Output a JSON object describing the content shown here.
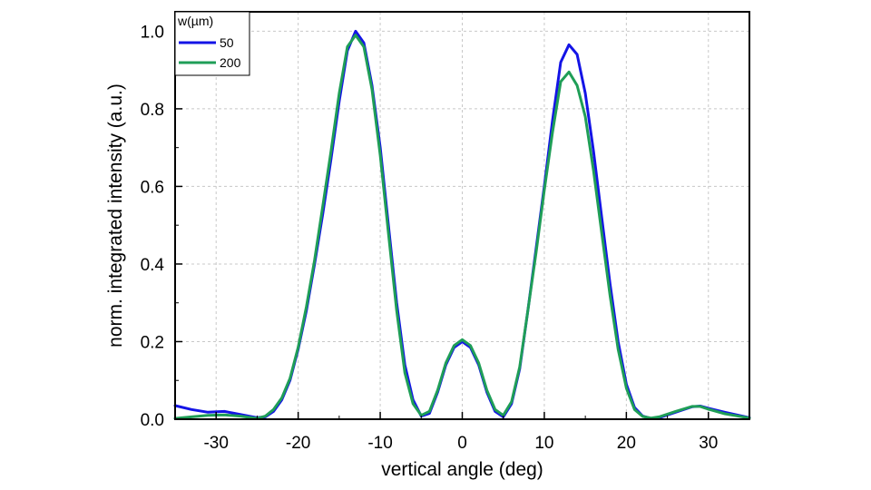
{
  "chart_data": {
    "type": "line",
    "title": "",
    "xlabel": "vertical angle (deg)",
    "ylabel": "norm. integrated intensity (a.u.)",
    "xlim": [
      -35,
      35
    ],
    "ylim": [
      0,
      1.05
    ],
    "xticks": [
      -30,
      -20,
      -10,
      0,
      10,
      20,
      30
    ],
    "yticks": [
      0.0,
      0.2,
      0.4,
      0.6,
      0.8,
      1.0
    ],
    "xtick_labels": [
      "-30",
      "-20",
      "-10",
      "0",
      "10",
      "20",
      "30"
    ],
    "ytick_labels": [
      "0.0",
      "0.2",
      "0.4",
      "0.6",
      "0.8",
      "1.0"
    ],
    "grid": true,
    "legend": {
      "title": "w(µm)",
      "placement": "top-left"
    },
    "series": [
      {
        "name": "50",
        "color": "#1414e6",
        "points": [
          [
            -35,
            0.035
          ],
          [
            -33,
            0.025
          ],
          [
            -31,
            0.018
          ],
          [
            -29,
            0.02
          ],
          [
            -27,
            0.012
          ],
          [
            -25,
            0.004
          ],
          [
            -24,
            0.006
          ],
          [
            -23,
            0.02
          ],
          [
            -22,
            0.05
          ],
          [
            -21,
            0.1
          ],
          [
            -20,
            0.18
          ],
          [
            -19,
            0.28
          ],
          [
            -18,
            0.4
          ],
          [
            -17,
            0.53
          ],
          [
            -16,
            0.67
          ],
          [
            -15,
            0.82
          ],
          [
            -14,
            0.95
          ],
          [
            -13,
            1.0
          ],
          [
            -12,
            0.97
          ],
          [
            -11,
            0.86
          ],
          [
            -10,
            0.7
          ],
          [
            -9,
            0.5
          ],
          [
            -8,
            0.3
          ],
          [
            -7,
            0.14
          ],
          [
            -6,
            0.05
          ],
          [
            -5,
            0.008
          ],
          [
            -4,
            0.015
          ],
          [
            -3,
            0.07
          ],
          [
            -2,
            0.14
          ],
          [
            -1,
            0.185
          ],
          [
            0,
            0.2
          ],
          [
            1,
            0.185
          ],
          [
            2,
            0.14
          ],
          [
            3,
            0.07
          ],
          [
            4,
            0.02
          ],
          [
            5,
            0.006
          ],
          [
            6,
            0.04
          ],
          [
            7,
            0.13
          ],
          [
            8,
            0.28
          ],
          [
            9,
            0.44
          ],
          [
            10,
            0.6
          ],
          [
            11,
            0.77
          ],
          [
            12,
            0.92
          ],
          [
            13,
            0.965
          ],
          [
            14,
            0.94
          ],
          [
            15,
            0.84
          ],
          [
            16,
            0.69
          ],
          [
            17,
            0.52
          ],
          [
            18,
            0.35
          ],
          [
            19,
            0.2
          ],
          [
            20,
            0.09
          ],
          [
            21,
            0.03
          ],
          [
            22,
            0.008
          ],
          [
            23,
            0.002
          ],
          [
            24,
            0.004
          ],
          [
            26,
            0.018
          ],
          [
            28,
            0.032
          ],
          [
            29,
            0.034
          ],
          [
            30,
            0.028
          ],
          [
            32,
            0.018
          ],
          [
            35,
            0.004
          ]
        ]
      },
      {
        "name": "200",
        "color": "#1f9e57",
        "points": [
          [
            -35,
            0.002
          ],
          [
            -33,
            0.006
          ],
          [
            -31,
            0.01
          ],
          [
            -29,
            0.011
          ],
          [
            -27,
            0.008
          ],
          [
            -25,
            0.002
          ],
          [
            -24,
            0.008
          ],
          [
            -23,
            0.025
          ],
          [
            -22,
            0.055
          ],
          [
            -21,
            0.105
          ],
          [
            -20,
            0.185
          ],
          [
            -19,
            0.29
          ],
          [
            -18,
            0.41
          ],
          [
            -17,
            0.55
          ],
          [
            -16,
            0.69
          ],
          [
            -15,
            0.84
          ],
          [
            -14,
            0.96
          ],
          [
            -13,
            0.99
          ],
          [
            -12,
            0.96
          ],
          [
            -11,
            0.85
          ],
          [
            -10,
            0.68
          ],
          [
            -9,
            0.48
          ],
          [
            -8,
            0.28
          ],
          [
            -7,
            0.12
          ],
          [
            -6,
            0.04
          ],
          [
            -5,
            0.01
          ],
          [
            -4,
            0.02
          ],
          [
            -3,
            0.075
          ],
          [
            -2,
            0.145
          ],
          [
            -1,
            0.19
          ],
          [
            0,
            0.205
          ],
          [
            1,
            0.19
          ],
          [
            2,
            0.145
          ],
          [
            3,
            0.075
          ],
          [
            4,
            0.025
          ],
          [
            5,
            0.01
          ],
          [
            6,
            0.045
          ],
          [
            7,
            0.135
          ],
          [
            8,
            0.28
          ],
          [
            9,
            0.43
          ],
          [
            10,
            0.59
          ],
          [
            11,
            0.74
          ],
          [
            12,
            0.87
          ],
          [
            13,
            0.895
          ],
          [
            14,
            0.86
          ],
          [
            15,
            0.78
          ],
          [
            16,
            0.64
          ],
          [
            17,
            0.48
          ],
          [
            18,
            0.32
          ],
          [
            19,
            0.18
          ],
          [
            20,
            0.08
          ],
          [
            21,
            0.025
          ],
          [
            22,
            0.007
          ],
          [
            23,
            0.003
          ],
          [
            24,
            0.006
          ],
          [
            26,
            0.02
          ],
          [
            28,
            0.033
          ],
          [
            29,
            0.033
          ],
          [
            30,
            0.026
          ],
          [
            32,
            0.014
          ],
          [
            35,
            0.003
          ]
        ]
      }
    ]
  }
}
